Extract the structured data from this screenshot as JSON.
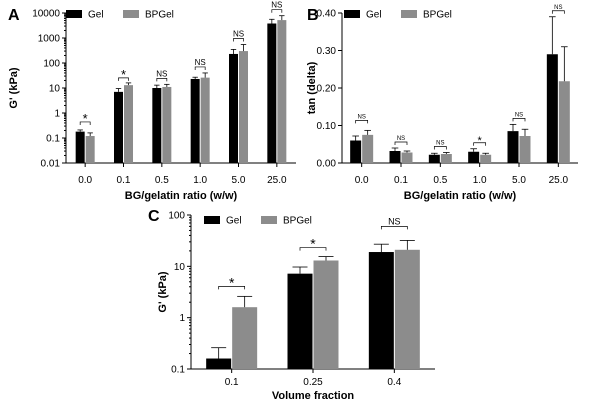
{
  "chart_data": [
    {
      "panel": "A",
      "type": "bar",
      "scale": "log",
      "ylabel": "G' (kPa)",
      "xlabel": "BG/gelatin ratio (w/w)",
      "categories": [
        "0.0",
        "0.1",
        "0.5",
        "1.0",
        "5.0",
        "25.0"
      ],
      "yticks": [
        "0.01",
        "0.1",
        "1",
        "10",
        "100",
        "1000",
        "10000"
      ],
      "ylim": [
        0.01,
        10000
      ],
      "legend_placement": "top-left",
      "colors": {
        "Gel": "#000000",
        "BPGel": "#8c8c8c"
      },
      "series": [
        {
          "name": "Gel",
          "values": [
            0.18,
            7,
            10,
            23,
            230,
            3800
          ],
          "err": [
            0.03,
            2.5,
            3,
            4,
            120,
            1800
          ]
        },
        {
          "name": "BPGel",
          "values": [
            0.12,
            13,
            11,
            26,
            300,
            5200
          ],
          "err": [
            0.04,
            3,
            3,
            14,
            250,
            2600
          ]
        }
      ],
      "significance": [
        "*",
        "*",
        "NS",
        "NS",
        "NS",
        "NS"
      ]
    },
    {
      "panel": "B",
      "type": "bar",
      "scale": "linear",
      "ylabel": "tan (delta)",
      "xlabel": "BG/gelatin ratio (w/w)",
      "categories": [
        "0.0",
        "0.1",
        "0.5",
        "1.0",
        "5.0",
        "25.0"
      ],
      "yticks": [
        "0.00",
        "0.10",
        "0.20",
        "0.30",
        "0.40"
      ],
      "ylim": [
        0,
        0.4
      ],
      "legend_placement": "top-left",
      "colors": {
        "Gel": "#000000",
        "BPGel": "#8c8c8c"
      },
      "series": [
        {
          "name": "Gel",
          "values": [
            0.06,
            0.032,
            0.022,
            0.03,
            0.085,
            0.29
          ],
          "err": [
            0.012,
            0.008,
            0.004,
            0.008,
            0.018,
            0.1
          ]
        },
        {
          "name": "BPGel",
          "values": [
            0.075,
            0.028,
            0.024,
            0.022,
            0.072,
            0.218
          ],
          "err": [
            0.012,
            0.004,
            0.004,
            0.004,
            0.018,
            0.092
          ]
        }
      ],
      "significance": [
        "NS",
        "NS",
        "NS",
        "*",
        "NS",
        "NS"
      ]
    },
    {
      "panel": "C",
      "type": "bar",
      "scale": "log",
      "ylabel": "G' (kPa)",
      "xlabel": "Volume fraction",
      "categories": [
        "0.1",
        "0.25",
        "0.4"
      ],
      "yticks": [
        "0.1",
        "1",
        "10",
        "100"
      ],
      "ylim": [
        0.1,
        100
      ],
      "legend_placement": "top-left",
      "colors": {
        "Gel": "#000000",
        "BPGel": "#8c8c8c"
      },
      "series": [
        {
          "name": "Gel",
          "values": [
            0.16,
            7.2,
            19
          ],
          "err": [
            0.1,
            2.5,
            8
          ]
        },
        {
          "name": "BPGel",
          "values": [
            1.6,
            13,
            21
          ],
          "err": [
            1,
            2.5,
            11
          ]
        }
      ],
      "significance": [
        "*",
        "*",
        "NS"
      ]
    }
  ]
}
